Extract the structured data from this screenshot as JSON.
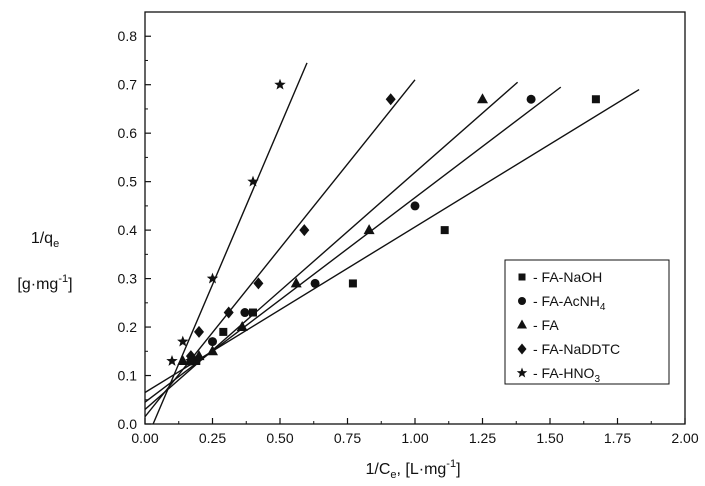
{
  "chart_data": {
    "type": "scatter",
    "xlabel": "1/C",
    "xlabel_sub": "e",
    "xlabel_suffix": ", [L·mg",
    "xlabel_sup": "-1",
    "xlabel_end": "]",
    "ylabel_line1": "1/q",
    "ylabel_line1_sub": "e",
    "ylabel_line2": "[g·mg",
    "ylabel_line2_sup": "-1",
    "ylabel_line2_end": "]",
    "xlim": [
      0,
      2.0
    ],
    "ylim": [
      0,
      0.85
    ],
    "xticks": [
      "0.00",
      "0.25",
      "0.50",
      "0.75",
      "1.00",
      "1.25",
      "1.50",
      "1.75",
      "2.00"
    ],
    "xtick_values": [
      0,
      0.25,
      0.5,
      0.75,
      1.0,
      1.25,
      1.5,
      1.75,
      2.0
    ],
    "yticks": [
      "0.0",
      "0.1",
      "0.2",
      "0.3",
      "0.4",
      "0.5",
      "0.6",
      "0.7",
      "0.8"
    ],
    "ytick_values": [
      0,
      0.1,
      0.2,
      0.3,
      0.4,
      0.5,
      0.6,
      0.7,
      0.8
    ],
    "grid": false,
    "legend_position": "lower-right",
    "series": [
      {
        "name": "- FA-NaOH",
        "marker": "square",
        "points": [
          [
            0.19,
            0.13
          ],
          [
            0.29,
            0.19
          ],
          [
            0.4,
            0.23
          ],
          [
            0.77,
            0.29
          ],
          [
            1.11,
            0.4
          ],
          [
            1.67,
            0.67
          ]
        ],
        "fit": {
          "x": [
            0.0,
            1.83
          ],
          "y": [
            0.065,
            0.69
          ]
        }
      },
      {
        "name": "- FA-AcNH",
        "name_sub": "4",
        "marker": "circle",
        "points": [
          [
            0.17,
            0.13
          ],
          [
            0.25,
            0.17
          ],
          [
            0.37,
            0.23
          ],
          [
            0.63,
            0.29
          ],
          [
            1.0,
            0.45
          ],
          [
            1.43,
            0.67
          ]
        ],
        "fit": {
          "x": [
            0.0,
            1.54
          ],
          "y": [
            0.045,
            0.695
          ]
        }
      },
      {
        "name": "- FA",
        "marker": "triangle",
        "points": [
          [
            0.14,
            0.13
          ],
          [
            0.2,
            0.14
          ],
          [
            0.25,
            0.15
          ],
          [
            0.36,
            0.2
          ],
          [
            0.56,
            0.29
          ],
          [
            0.83,
            0.4
          ],
          [
            1.25,
            0.67
          ]
        ],
        "fit": {
          "x": [
            0.0,
            1.38
          ],
          "y": [
            0.03,
            0.705
          ]
        }
      },
      {
        "name": "- FA-NaDDTC",
        "marker": "diamond",
        "points": [
          [
            0.17,
            0.14
          ],
          [
            0.2,
            0.19
          ],
          [
            0.31,
            0.23
          ],
          [
            0.42,
            0.29
          ],
          [
            0.59,
            0.4
          ],
          [
            0.91,
            0.67
          ]
        ],
        "fit": {
          "x": [
            0.0,
            1.0
          ],
          "y": [
            0.015,
            0.71
          ]
        }
      },
      {
        "name": "- FA-HNO",
        "name_sub": "3",
        "marker": "star",
        "points": [
          [
            0.1,
            0.13
          ],
          [
            0.14,
            0.17
          ],
          [
            0.17,
            0.13
          ],
          [
            0.25,
            0.3
          ],
          [
            0.4,
            0.5
          ],
          [
            0.5,
            0.7
          ]
        ],
        "fit": {
          "x": [
            0.03,
            0.6
          ],
          "y": [
            0.0,
            0.745
          ]
        }
      }
    ]
  }
}
